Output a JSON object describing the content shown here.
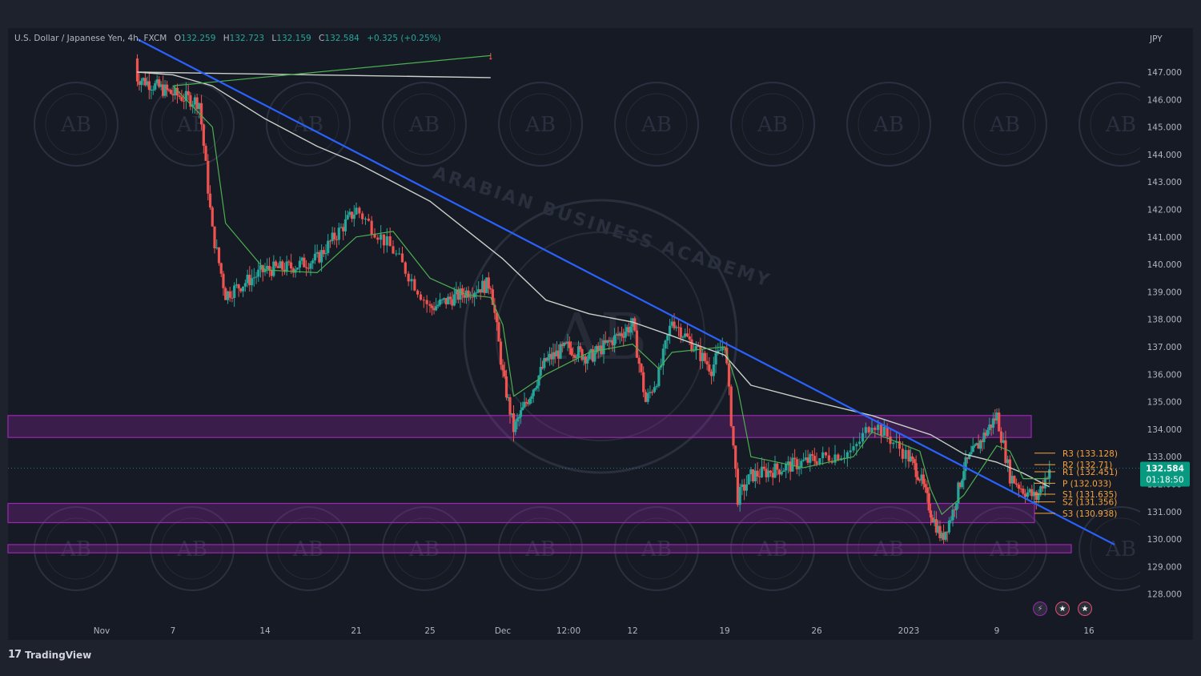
{
  "legend": {
    "symbol": "U.S. Dollar / Japanese Yen, 4h, FXCM",
    "open_label": "O",
    "open": "132.259",
    "high_label": "H",
    "high": "132.723",
    "low_label": "L",
    "low": "132.159",
    "close_label": "C",
    "close": "132.584",
    "change": "+0.325 (+0.25%)"
  },
  "price_axis": {
    "currency": "JPY",
    "current_price": "132.584",
    "countdown": "01:18:50",
    "current_price_color": "#089981"
  },
  "pivots": [
    {
      "label": "R3 (133.128)",
      "value": 133.128
    },
    {
      "label": "R2 (132.71)",
      "value": 132.71
    },
    {
      "label": "R1 (132.451)",
      "value": 132.451
    },
    {
      "label": "P (132.033)",
      "value": 132.033
    },
    {
      "label": "S1 (131.635)",
      "value": 131.635
    },
    {
      "label": "S2 (131.356)",
      "value": 131.356
    },
    {
      "label": "S3 (130.938)",
      "value": 130.938
    }
  ],
  "brand": {
    "logo": "17",
    "name": "TradingView"
  },
  "watermark": {
    "text": "ARABIAN BUSINESS ACADEMY",
    "monogram": "AB"
  },
  "event_icons": [
    "flash-icon",
    "us-flag-icon",
    "us-flag-icon"
  ],
  "chart_data": {
    "type": "candlestick",
    "title": "",
    "xlabel": "",
    "ylabel": "",
    "ylim": [
      127.3,
      148.3
    ],
    "grid": false,
    "x_ticks": [
      "Nov",
      "7",
      "14",
      "21",
      "25",
      "Dec",
      "12:00",
      "12",
      "19",
      "26",
      "2023",
      "9",
      "16"
    ],
    "y_ticks": [
      "147.000",
      "146.000",
      "145.000",
      "144.000",
      "143.000",
      "142.000",
      "141.000",
      "140.000",
      "139.000",
      "138.000",
      "137.000",
      "136.000",
      "135.000",
      "134.000",
      "133.000",
      "132.000",
      "131.000",
      "130.000",
      "129.000",
      "128.000"
    ],
    "colors": {
      "up": "#26a69a",
      "down": "#ef5350",
      "trendline": "#2962ff",
      "fast_ma": "#4caf50",
      "slow_ma": "#c8d0c8",
      "zone": "#9c27b0"
    },
    "price_path": [
      {
        "x": "Oct 31",
        "y": 147.5
      },
      {
        "x": "Nov 4",
        "y": 146.8
      },
      {
        "x": "Nov 7",
        "y": 146.2
      },
      {
        "x": "Nov 9",
        "y": 145.9
      },
      {
        "x": "Nov 10",
        "y": 141.2
      },
      {
        "x": "Nov 11",
        "y": 138.9
      },
      {
        "x": "Nov 14",
        "y": 139.8
      },
      {
        "x": "Nov 16",
        "y": 139.9
      },
      {
        "x": "Nov 18",
        "y": 140.2
      },
      {
        "x": "Nov 21",
        "y": 142.0
      },
      {
        "x": "Nov 23",
        "y": 140.5
      },
      {
        "x": "Nov 25",
        "y": 138.4
      },
      {
        "x": "Nov 28",
        "y": 139.0
      },
      {
        "x": "Nov 30",
        "y": 139.3
      },
      {
        "x": "Dec 1",
        "y": 136.0
      },
      {
        "x": "Dec 2",
        "y": 134.0
      },
      {
        "x": "Dec 5",
        "y": 136.5
      },
      {
        "x": "Dec 7",
        "y": 137.0
      },
      {
        "x": "Dec 9",
        "y": 136.6
      },
      {
        "x": "Dec 13",
        "y": 137.8
      },
      {
        "x": "Dec 14",
        "y": 135.0
      },
      {
        "x": "Dec 15",
        "y": 136.0
      },
      {
        "x": "Dec 16",
        "y": 138.0
      },
      {
        "x": "Dec 19",
        "y": 136.2
      },
      {
        "x": "Dec 20",
        "y": 137.2
      },
      {
        "x": "Dec 21",
        "y": 131.5
      },
      {
        "x": "Dec 22",
        "y": 132.3
      },
      {
        "x": "Dec 26",
        "y": 132.8
      },
      {
        "x": "Dec 29",
        "y": 133.2
      },
      {
        "x": "Dec 30",
        "y": 134.3
      },
      {
        "x": "Jan 2",
        "y": 132.3
      },
      {
        "x": "Jan 3",
        "y": 131.0
      },
      {
        "x": "Jan 4",
        "y": 130.0
      },
      {
        "x": "Jan 5",
        "y": 131.0
      },
      {
        "x": "Jan 6",
        "y": 132.6
      },
      {
        "x": "Jan 9",
        "y": 134.5
      },
      {
        "x": "Jan 10",
        "y": 132.3
      },
      {
        "x": "Jan 11",
        "y": 131.8
      },
      {
        "x": "Jan 12",
        "y": 131.5
      },
      {
        "x": "Jan 13",
        "y": 132.58
      }
    ],
    "fast_ma": [
      {
        "x": "Oct 31",
        "y": 147.6
      },
      {
        "x": "Nov 7",
        "y": 146.5
      },
      {
        "x": "Nov 10",
        "y": 145.0
      },
      {
        "x": "Nov 11",
        "y": 141.5
      },
      {
        "x": "Nov 14",
        "y": 139.8
      },
      {
        "x": "Nov 18",
        "y": 139.7
      },
      {
        "x": "Nov 21",
        "y": 141.0
      },
      {
        "x": "Nov 23",
        "y": 141.2
      },
      {
        "x": "Nov 25",
        "y": 139.5
      },
      {
        "x": "Nov 28",
        "y": 138.9
      },
      {
        "x": "Nov 30",
        "y": 138.8
      },
      {
        "x": "Dec 1",
        "y": 137.8
      },
      {
        "x": "Dec 2",
        "y": 135.2
      },
      {
        "x": "Dec 5",
        "y": 136.0
      },
      {
        "x": "Dec 9",
        "y": 136.8
      },
      {
        "x": "Dec 13",
        "y": 137.1
      },
      {
        "x": "Dec 15",
        "y": 136.2
      },
      {
        "x": "Dec 16",
        "y": 136.8
      },
      {
        "x": "Dec 20",
        "y": 137.0
      },
      {
        "x": "Dec 21",
        "y": 135.5
      },
      {
        "x": "Dec 22",
        "y": 133.0
      },
      {
        "x": "Dec 26",
        "y": 132.6
      },
      {
        "x": "Dec 29",
        "y": 133.0
      },
      {
        "x": "Dec 30",
        "y": 133.9
      },
      {
        "x": "Jan 2",
        "y": 133.2
      },
      {
        "x": "Jan 3",
        "y": 131.8
      },
      {
        "x": "Jan 4",
        "y": 130.9
      },
      {
        "x": "Jan 6",
        "y": 131.6
      },
      {
        "x": "Jan 9",
        "y": 133.4
      },
      {
        "x": "Jan 10",
        "y": 133.2
      },
      {
        "x": "Jan 11",
        "y": 132.2
      },
      {
        "x": "Jan 13",
        "y": 132.2
      }
    ],
    "slow_ma": [
      {
        "x": "Oct 31",
        "y": 146.8
      },
      {
        "x": "Nov 4",
        "y": 147.0
      },
      {
        "x": "Nov 7",
        "y": 146.9
      },
      {
        "x": "Nov 10",
        "y": 146.5
      },
      {
        "x": "Nov 14",
        "y": 145.3
      },
      {
        "x": "Nov 18",
        "y": 144.3
      },
      {
        "x": "Nov 21",
        "y": 143.7
      },
      {
        "x": "Nov 25",
        "y": 142.3
      },
      {
        "x": "Dec 1",
        "y": 140.2
      },
      {
        "x": "Dec 5",
        "y": 138.7
      },
      {
        "x": "Dec 9",
        "y": 138.2
      },
      {
        "x": "Dec 13",
        "y": 137.9
      },
      {
        "x": "Dec 16",
        "y": 137.4
      },
      {
        "x": "Dec 20",
        "y": 136.7
      },
      {
        "x": "Dec 22",
        "y": 135.6
      },
      {
        "x": "Dec 26",
        "y": 135.1
      },
      {
        "x": "Dec 30",
        "y": 134.5
      },
      {
        "x": "Jan 3",
        "y": 133.8
      },
      {
        "x": "Jan 6",
        "y": 133.1
      },
      {
        "x": "Jan 9",
        "y": 132.8
      },
      {
        "x": "Jan 11",
        "y": 132.4
      },
      {
        "x": "Jan 13",
        "y": 131.9
      }
    ],
    "trendline": [
      {
        "x": "Nov 4",
        "y": 148.2
      },
      {
        "x": "Jan 17",
        "y": 129.8
      }
    ],
    "zones": [
      {
        "from": 133.7,
        "to": 134.5
      },
      {
        "from": 130.6,
        "to": 131.3
      },
      {
        "from": 129.5,
        "to": 129.8
      }
    ]
  }
}
